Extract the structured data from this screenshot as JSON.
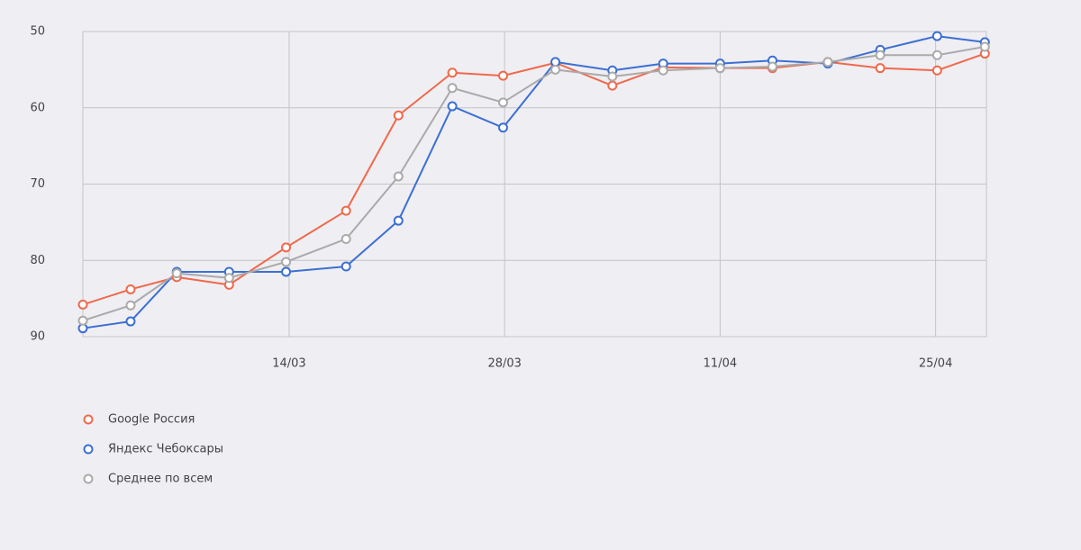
{
  "chart_data": {
    "type": "line",
    "x": [
      59.6,
      62.7,
      65.7,
      69.1,
      72.8,
      76.7,
      80.1,
      83.6,
      86.9,
      90.3,
      94.0,
      97.3,
      101.0,
      104.4,
      108.0,
      111.4,
      115.1,
      118.2
    ],
    "series": [
      {
        "name": "Google Россия",
        "color": "#f0694b",
        "values": [
          85.8,
          83.8,
          82.2,
          83.2,
          78.3,
          73.5,
          61.0,
          55.4,
          55.8,
          54.1,
          57.1,
          54.7,
          54.8,
          54.8,
          54.0,
          54.8,
          55.1,
          52.9
        ]
      },
      {
        "name": "Яндекс Чебоксары",
        "color": "#3c6fd3",
        "values": [
          88.9,
          88.0,
          81.5,
          81.5,
          81.5,
          80.8,
          74.8,
          59.8,
          62.6,
          54.0,
          55.1,
          54.2,
          54.2,
          53.8,
          54.2,
          52.4,
          50.6,
          51.4
        ]
      },
      {
        "name": "Среднее по всем",
        "color": "#aaaaaa",
        "values": [
          87.9,
          85.9,
          81.7,
          82.3,
          80.2,
          77.2,
          69.0,
          57.4,
          59.3,
          55.0,
          55.9,
          55.1,
          54.8,
          54.6,
          54.0,
          53.1,
          53.1,
          52.0
        ]
      }
    ],
    "xlim": [
      59.6,
      118.3
    ],
    "xticks": [
      {
        "value": 73,
        "label": "14/03"
      },
      {
        "value": 87,
        "label": "28/03"
      },
      {
        "value": 101,
        "label": "11/04"
      },
      {
        "value": 115,
        "label": "25/04"
      }
    ],
    "ylim": [
      90,
      50
    ],
    "yticks": [
      50,
      60,
      70,
      80,
      90
    ],
    "grid": true,
    "legend": "bottom-left"
  }
}
